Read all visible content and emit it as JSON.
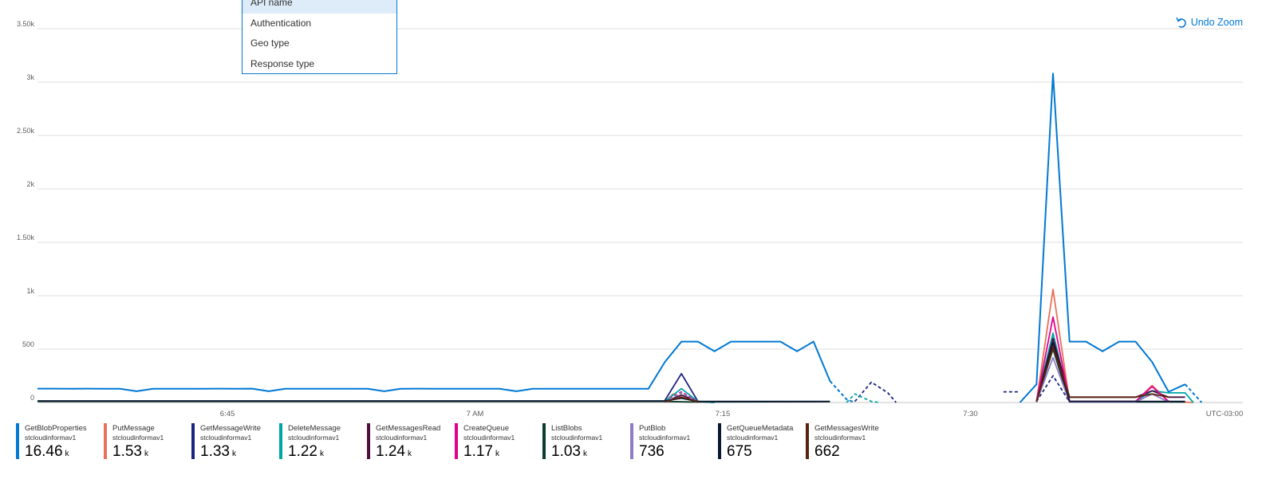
{
  "undo_zoom": {
    "label": "Undo Zoom",
    "icon": "undo-icon",
    "color": "#0078d4"
  },
  "menu": {
    "items": [
      {
        "label": "API name",
        "selected": true
      },
      {
        "label": "Authentication",
        "selected": false
      },
      {
        "label": "Geo type",
        "selected": false
      },
      {
        "label": "Response type",
        "selected": false
      }
    ]
  },
  "chart_data": {
    "type": "line",
    "y_ticks": [
      {
        "value": 0,
        "label": "0"
      },
      {
        "value": 500,
        "label": "500"
      },
      {
        "value": 1000,
        "label": "1k"
      },
      {
        "value": 1500,
        "label": "1.50k"
      },
      {
        "value": 2000,
        "label": "2k"
      },
      {
        "value": 2500,
        "label": "2.50k"
      },
      {
        "value": 3000,
        "label": "3k"
      },
      {
        "value": 3500,
        "label": "3.50k"
      }
    ],
    "ylim": [
      0,
      3500
    ],
    "x_ticks": [
      {
        "minute": 45,
        "label": "6:45"
      },
      {
        "minute": 60,
        "label": "7 AM"
      },
      {
        "minute": 75,
        "label": "7:15"
      },
      {
        "minute": 90,
        "label": "7:30"
      }
    ],
    "timezone_label": "UTC-03:00",
    "xlim": [
      33.5,
      106.5
    ],
    "grid": true,
    "series": [
      {
        "name": "GetBlobProperties",
        "account": "stcloudinformav1",
        "total": "16.46",
        "unit": "k",
        "color": "#0078d4",
        "segments": [
          {
            "style": "solid",
            "points": [
              [
                33.5,
                130
              ],
              [
                34.5,
                130
              ],
              [
                35.5,
                128
              ],
              [
                36.5,
                130
              ],
              [
                37.5,
                128
              ],
              [
                38.5,
                128
              ],
              [
                39.5,
                105
              ],
              [
                40.5,
                128
              ],
              [
                41.5,
                128
              ],
              [
                42.5,
                128
              ],
              [
                43.5,
                128
              ],
              [
                44.5,
                130
              ],
              [
                45.5,
                128
              ],
              [
                46.5,
                130
              ],
              [
                47.5,
                105
              ],
              [
                48.5,
                128
              ],
              [
                49.5,
                128
              ],
              [
                50.5,
                128
              ],
              [
                51.5,
                128
              ],
              [
                52.5,
                128
              ],
              [
                53.5,
                128
              ],
              [
                54.5,
                105
              ],
              [
                55.5,
                128
              ],
              [
                56.5,
                130
              ],
              [
                57.5,
                128
              ],
              [
                58.5,
                128
              ],
              [
                59.5,
                128
              ],
              [
                60.5,
                128
              ],
              [
                61.5,
                128
              ],
              [
                62.5,
                105
              ],
              [
                63.5,
                128
              ],
              [
                64.5,
                128
              ],
              [
                65.5,
                128
              ],
              [
                66.5,
                128
              ],
              [
                67.5,
                128
              ],
              [
                68.5,
                128
              ],
              [
                69.5,
                128
              ],
              [
                70.5,
                128
              ],
              [
                71.5,
                380
              ],
              [
                72.5,
                570
              ],
              [
                73.5,
                570
              ],
              [
                74.5,
                480
              ],
              [
                75.5,
                570
              ],
              [
                76.5,
                570
              ],
              [
                77.5,
                570
              ],
              [
                78.5,
                570
              ],
              [
                79.5,
                480
              ],
              [
                80.5,
                570
              ],
              [
                81.5,
                200
              ]
            ]
          },
          {
            "style": "dashed",
            "points": [
              [
                81.5,
                200
              ],
              [
                82.5,
                30
              ],
              [
                83,
                0
              ]
            ]
          },
          {
            "style": "solid",
            "points": [
              [
                93,
                0
              ],
              [
                94,
                170
              ],
              [
                95,
                3080
              ],
              [
                96,
                570
              ],
              [
                97,
                570
              ],
              [
                98,
                480
              ],
              [
                99,
                570
              ],
              [
                100,
                570
              ],
              [
                101,
                380
              ],
              [
                102,
                100
              ],
              [
                103,
                170
              ]
            ]
          },
          {
            "style": "dashed",
            "points": [
              [
                103,
                170
              ],
              [
                104,
                0
              ]
            ]
          }
        ]
      },
      {
        "name": "PutMessage",
        "account": "stcloudinformav1",
        "total": "1.53",
        "unit": "k",
        "color": "#e8715a",
        "segments": [
          {
            "style": "solid",
            "points": [
              [
                71.5,
                10
              ],
              [
                72,
                80
              ],
              [
                72.5,
                50
              ],
              [
                73.5,
                0
              ]
            ]
          },
          {
            "style": "solid",
            "points": [
              [
                94,
                10
              ],
              [
                95,
                1060
              ],
              [
                96,
                10
              ],
              [
                100,
                10
              ],
              [
                101,
                160
              ],
              [
                102,
                10
              ],
              [
                103.5,
                0
              ]
            ]
          }
        ]
      },
      {
        "name": "GetMessageWrite",
        "account": "stcloudinformav1",
        "total": "1.33",
        "unit": "k",
        "color": "#1a237e",
        "segments": [
          {
            "style": "solid",
            "points": [
              [
                71.5,
                20
              ],
              [
                72.5,
                270
              ],
              [
                73.5,
                10
              ],
              [
                74.5,
                0
              ]
            ]
          },
          {
            "style": "dashed",
            "points": [
              [
                83,
                10
              ],
              [
                84,
                190
              ],
              [
                85,
                90
              ],
              [
                85.5,
                0
              ]
            ]
          },
          {
            "style": "dashed",
            "points": [
              [
                92,
                100
              ],
              [
                93,
                100
              ]
            ]
          },
          {
            "style": "dashed",
            "points": [
              [
                94,
                10
              ],
              [
                95,
                250
              ],
              [
                96,
                5
              ]
            ]
          }
        ]
      },
      {
        "name": "DeleteMessage",
        "account": "stcloudinformav1",
        "total": "1.22",
        "unit": "k",
        "color": "#00a6a6",
        "segments": [
          {
            "style": "solid",
            "points": [
              [
                71.5,
                10
              ],
              [
                72.5,
                130
              ],
              [
                73.5,
                10
              ],
              [
                74.5,
                0
              ]
            ]
          },
          {
            "style": "dashed",
            "points": [
              [
                82.5,
                0
              ],
              [
                83,
                80
              ],
              [
                84,
                10
              ],
              [
                84.5,
                0
              ]
            ]
          },
          {
            "style": "solid",
            "points": [
              [
                94,
                10
              ],
              [
                95,
                650
              ],
              [
                96,
                10
              ],
              [
                100,
                10
              ],
              [
                101,
                110
              ],
              [
                102,
                90
              ],
              [
                103,
                90
              ],
              [
                103.5,
                0
              ]
            ]
          }
        ]
      },
      {
        "name": "GetMessagesRead",
        "account": "stcloudinformav1",
        "total": "1.24",
        "unit": "k",
        "color": "#4a0f3f",
        "segments": [
          {
            "style": "solid",
            "points": [
              [
                71.5,
                5
              ],
              [
                72.5,
                70
              ],
              [
                73.5,
                10
              ]
            ]
          },
          {
            "style": "solid",
            "points": [
              [
                94,
                10
              ],
              [
                95,
                600
              ],
              [
                96,
                50
              ],
              [
                100,
                50
              ],
              [
                101,
                110
              ],
              [
                102,
                50
              ],
              [
                103,
                50
              ]
            ]
          }
        ]
      },
      {
        "name": "CreateQueue",
        "account": "stcloudinformav1",
        "total": "1.17",
        "unit": "k",
        "color": "#e3008c",
        "segments": [
          {
            "style": "dashed",
            "points": [
              [
                71.5,
                5
              ],
              [
                72.5,
                100
              ],
              [
                73.5,
                5
              ]
            ]
          },
          {
            "style": "solid",
            "points": [
              [
                94,
                10
              ],
              [
                95,
                800
              ],
              [
                96,
                10
              ],
              [
                100,
                10
              ],
              [
                101,
                150
              ],
              [
                102,
                10
              ]
            ]
          }
        ]
      },
      {
        "name": "ListBlobs",
        "account": "stcloudinformav1",
        "total": "1.03",
        "unit": "k",
        "color": "#0b3d2e",
        "segments": [
          {
            "style": "solid",
            "points": [
              [
                33.5,
                10
              ],
              [
                50,
                10
              ],
              [
                70,
                10
              ],
              [
                71.5,
                10
              ],
              [
                73,
                5
              ],
              [
                81.5,
                8
              ]
            ]
          },
          {
            "style": "solid",
            "points": [
              [
                94,
                5
              ],
              [
                95,
                500
              ],
              [
                96,
                5
              ],
              [
                103,
                5
              ]
            ]
          }
        ]
      },
      {
        "name": "PutBlob",
        "account": "stcloudinformav1",
        "total": "736",
        "unit": "",
        "color": "#8e7cc3",
        "segments": [
          {
            "style": "dashed",
            "points": [
              [
                71.5,
                5
              ],
              [
                72.5,
                90
              ],
              [
                73.5,
                5
              ]
            ]
          },
          {
            "style": "solid",
            "points": [
              [
                94,
                5
              ],
              [
                95,
                420
              ],
              [
                96,
                5
              ],
              [
                100,
                5
              ],
              [
                101,
                80
              ],
              [
                102,
                5
              ]
            ]
          }
        ]
      },
      {
        "name": "GetQueueMetadata",
        "account": "stcloudinformav1",
        "total": "675",
        "unit": "",
        "color": "#0a1931",
        "segments": [
          {
            "style": "solid",
            "points": [
              [
                33.5,
                15
              ],
              [
                40,
                15
              ],
              [
                50,
                15
              ],
              [
                60,
                15
              ],
              [
                70,
                15
              ],
              [
                71.5,
                15
              ],
              [
                72.5,
                40
              ],
              [
                73.5,
                10
              ],
              [
                81.5,
                10
              ]
            ]
          },
          {
            "style": "solid",
            "points": [
              [
                94,
                5
              ],
              [
                95,
                560
              ],
              [
                96,
                10
              ],
              [
                103,
                10
              ]
            ]
          }
        ]
      },
      {
        "name": "GetMessagesWrite",
        "account": "stcloudinformav1",
        "total": "662",
        "unit": "",
        "color": "#5c2410",
        "segments": [
          {
            "style": "solid",
            "points": [
              [
                71.5,
                5
              ],
              [
                72.5,
                50
              ],
              [
                73.5,
                5
              ]
            ]
          },
          {
            "style": "solid",
            "points": [
              [
                94,
                5
              ],
              [
                95,
                520
              ],
              [
                96,
                50
              ],
              [
                100,
                50
              ],
              [
                101,
                80
              ],
              [
                102,
                50
              ]
            ]
          }
        ]
      }
    ]
  }
}
